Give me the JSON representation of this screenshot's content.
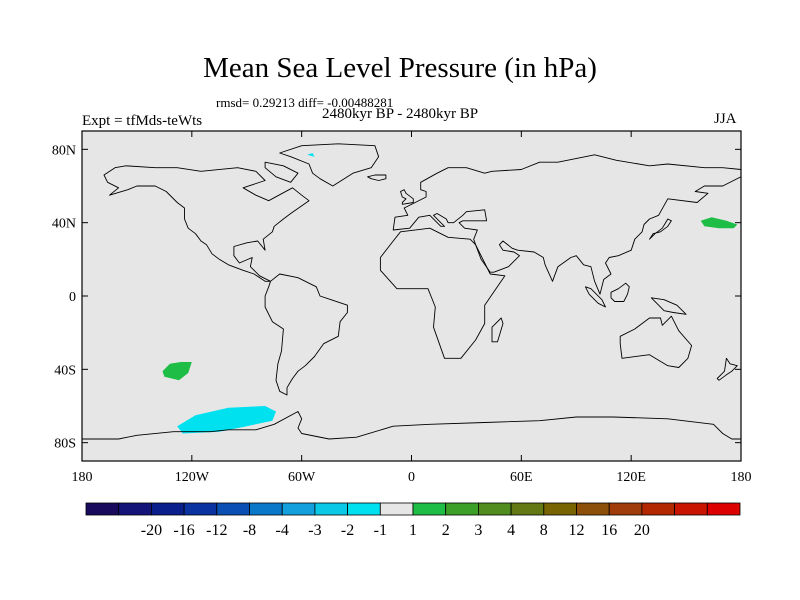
{
  "chart_data": {
    "type": "heatmap",
    "title": "Mean Sea Level Pressure (in hPa)",
    "stats_text": "rmsd= 0.29213  diff= -0.00488281",
    "period": "2480kyr BP - 2480kyr BP",
    "left_label": "Expt = tfMds-teWts",
    "right_label": "JJA",
    "x_ticks": [
      {
        "value": -180,
        "label": "180"
      },
      {
        "value": -120,
        "label": "120W"
      },
      {
        "value": -60,
        "label": "60W"
      },
      {
        "value": 0,
        "label": "0"
      },
      {
        "value": 60,
        "label": "60E"
      },
      {
        "value": 120,
        "label": "120E"
      },
      {
        "value": 180,
        "label": "180"
      }
    ],
    "y_ticks": [
      {
        "value": 80,
        "label": "80N"
      },
      {
        "value": 40,
        "label": "40N"
      },
      {
        "value": 0,
        "label": "0"
      },
      {
        "value": -40,
        "label": "40S"
      },
      {
        "value": -80,
        "label": "80S"
      }
    ],
    "xlim": [
      -180,
      180
    ],
    "ylim": [
      -90,
      90
    ],
    "background_color": "#e6e6e6",
    "colorbar": {
      "colors": [
        "#1a0a5e",
        "#141478",
        "#0a1e8c",
        "#0a32a0",
        "#0a50b4",
        "#0a78c8",
        "#14a0dc",
        "#0ac8e6",
        "#00e1f0",
        "#e6e6e6",
        "#1ebe46",
        "#3ca028",
        "#508c1e",
        "#647814",
        "#786400",
        "#8c500a",
        "#a03c0a",
        "#b42800",
        "#c81400",
        "#dc0000"
      ],
      "labels": [
        "-20",
        "-16",
        "-12",
        "-8",
        "-4",
        "-3",
        "-2",
        "-1",
        "1",
        "2",
        "3",
        "4",
        "8",
        "12",
        "16",
        "20"
      ]
    },
    "anomaly_regions": [
      {
        "name": "nw-pacific-positive",
        "color": "#1ebe46",
        "points": [
          [
            158,
            41
          ],
          [
            164,
            43
          ],
          [
            172,
            41
          ],
          [
            178,
            39
          ],
          [
            176,
            37
          ],
          [
            168,
            37
          ],
          [
            160,
            38
          ]
        ]
      },
      {
        "name": "south-pacific-positive",
        "color": "#1ebe46",
        "points": [
          [
            -136,
            -41
          ],
          [
            -132,
            -37
          ],
          [
            -126,
            -36
          ],
          [
            -120,
            -36
          ],
          [
            -122,
            -42
          ],
          [
            -127,
            -46
          ],
          [
            -135,
            -44
          ]
        ]
      },
      {
        "name": "amundsen-sea-negative",
        "color": "#00e1f0",
        "points": [
          [
            -128,
            -71
          ],
          [
            -118,
            -65
          ],
          [
            -100,
            -61
          ],
          [
            -80,
            -60
          ],
          [
            -74,
            -63
          ],
          [
            -76,
            -68
          ],
          [
            -90,
            -71
          ],
          [
            -105,
            -74
          ],
          [
            -125,
            -75
          ]
        ]
      },
      {
        "name": "greenland-negative",
        "color": "#00e1f0",
        "points": [
          [
            -57,
            77
          ],
          [
            -54,
            78
          ],
          [
            -53,
            76
          ]
        ]
      }
    ],
    "coastlines": {
      "north-america": [
        [
          -168,
          66
        ],
        [
          -162,
          70
        ],
        [
          -156,
          71
        ],
        [
          -140,
          70
        ],
        [
          -128,
          70
        ],
        [
          -115,
          68
        ],
        [
          -95,
          70
        ],
        [
          -85,
          68
        ],
        [
          -80,
          63
        ],
        [
          -92,
          59
        ],
        [
          -85,
          55
        ],
        [
          -78,
          52
        ],
        [
          -65,
          59
        ],
        [
          -60,
          55
        ],
        [
          -56,
          52
        ],
        [
          -66,
          45
        ],
        [
          -70,
          42
        ],
        [
          -75,
          38
        ],
        [
          -76,
          35
        ],
        [
          -81,
          31
        ],
        [
          -80,
          25
        ],
        [
          -84,
          30
        ],
        [
          -90,
          29
        ],
        [
          -97,
          27
        ],
        [
          -97,
          22
        ],
        [
          -94,
          18
        ],
        [
          -87,
          21
        ],
        [
          -88,
          16
        ],
        [
          -83,
          11
        ],
        [
          -77,
          8
        ],
        [
          -80,
          8
        ],
        [
          -86,
          12
        ],
        [
          -92,
          14
        ],
        [
          -100,
          17
        ],
        [
          -105,
          20
        ],
        [
          -109,
          23
        ],
        [
          -112,
          28
        ],
        [
          -115,
          30
        ],
        [
          -118,
          34
        ],
        [
          -122,
          37
        ],
        [
          -124,
          42
        ],
        [
          -124,
          48
        ],
        [
          -128,
          51
        ],
        [
          -134,
          57
        ],
        [
          -140,
          60
        ],
        [
          -150,
          60
        ],
        [
          -155,
          58
        ],
        [
          -165,
          55
        ],
        [
          -160,
          59
        ],
        [
          -166,
          62
        ]
      ],
      "greenland": [
        [
          -72,
          78
        ],
        [
          -60,
          82
        ],
        [
          -40,
          83
        ],
        [
          -20,
          82
        ],
        [
          -18,
          76
        ],
        [
          -22,
          70
        ],
        [
          -32,
          67
        ],
        [
          -43,
          60
        ],
        [
          -50,
          64
        ],
        [
          -54,
          67
        ],
        [
          -56,
          72
        ],
        [
          -66,
          76
        ]
      ],
      "south-america": [
        [
          -77,
          8
        ],
        [
          -72,
          12
        ],
        [
          -62,
          10
        ],
        [
          -52,
          5
        ],
        [
          -50,
          0
        ],
        [
          -44,
          -2
        ],
        [
          -35,
          -5
        ],
        [
          -35,
          -9
        ],
        [
          -39,
          -14
        ],
        [
          -40,
          -22
        ],
        [
          -48,
          -26
        ],
        [
          -53,
          -33
        ],
        [
          -58,
          -38
        ],
        [
          -62,
          -41
        ],
        [
          -65,
          -45
        ],
        [
          -68,
          -50
        ],
        [
          -68,
          -54
        ],
        [
          -72,
          -52
        ],
        [
          -74,
          -46
        ],
        [
          -73,
          -37
        ],
        [
          -71,
          -30
        ],
        [
          -70,
          -18
        ],
        [
          -76,
          -14
        ],
        [
          -80,
          -6
        ],
        [
          -80,
          0
        ],
        [
          -78,
          5
        ]
      ],
      "africa": [
        [
          -17,
          21
        ],
        [
          -10,
          30
        ],
        [
          -6,
          35
        ],
        [
          10,
          37
        ],
        [
          20,
          32
        ],
        [
          32,
          31
        ],
        [
          35,
          28
        ],
        [
          43,
          12
        ],
        [
          51,
          11
        ],
        [
          40,
          -5
        ],
        [
          40,
          -15
        ],
        [
          35,
          -24
        ],
        [
          27,
          -34
        ],
        [
          18,
          -34
        ],
        [
          12,
          -17
        ],
        [
          13,
          -6
        ],
        [
          9,
          4
        ],
        [
          -8,
          4
        ],
        [
          -17,
          14
        ]
      ],
      "eurasia": [
        [
          -10,
          36
        ],
        [
          -9,
          43
        ],
        [
          -2,
          44
        ],
        [
          -4,
          48
        ],
        [
          2,
          51
        ],
        [
          8,
          54
        ],
        [
          8,
          57
        ],
        [
          5,
          58
        ],
        [
          5,
          62
        ],
        [
          14,
          67
        ],
        [
          20,
          70
        ],
        [
          30,
          70
        ],
        [
          40,
          67
        ],
        [
          44,
          68
        ],
        [
          60,
          69
        ],
        [
          70,
          73
        ],
        [
          80,
          73
        ],
        [
          100,
          77
        ],
        [
          112,
          74
        ],
        [
          130,
          71
        ],
        [
          140,
          72
        ],
        [
          160,
          70
        ],
        [
          170,
          70
        ],
        [
          180,
          69
        ],
        [
          180,
          65
        ],
        [
          170,
          60
        ],
        [
          160,
          60
        ],
        [
          155,
          57
        ],
        [
          162,
          56
        ],
        [
          156,
          51
        ],
        [
          140,
          53
        ],
        [
          135,
          44
        ],
        [
          130,
          42
        ],
        [
          127,
          39
        ],
        [
          126,
          35
        ],
        [
          122,
          31
        ],
        [
          120,
          25
        ],
        [
          113,
          22
        ],
        [
          108,
          21
        ],
        [
          106,
          18
        ],
        [
          109,
          12
        ],
        [
          105,
          9
        ],
        [
          103,
          1
        ],
        [
          100,
          8
        ],
        [
          98,
          16
        ],
        [
          94,
          17
        ],
        [
          90,
          22
        ],
        [
          87,
          21
        ],
        [
          80,
          16
        ],
        [
          77,
          8
        ],
        [
          73,
          17
        ],
        [
          72,
          21
        ],
        [
          67,
          24
        ],
        [
          58,
          25
        ],
        [
          55,
          26
        ],
        [
          50,
          30
        ],
        [
          48,
          28
        ],
        [
          50,
          25
        ],
        [
          56,
          24
        ],
        [
          59,
          22
        ],
        [
          53,
          16
        ],
        [
          45,
          13
        ],
        [
          43,
          13
        ],
        [
          38,
          20
        ],
        [
          35,
          28
        ],
        [
          34,
          31
        ],
        [
          36,
          36
        ],
        [
          29,
          37
        ],
        [
          26,
          40
        ],
        [
          28,
          41
        ],
        [
          41,
          41
        ],
        [
          40,
          47
        ],
        [
          30,
          46
        ],
        [
          28,
          44
        ],
        [
          23,
          40
        ],
        [
          20,
          40
        ],
        [
          19,
          42
        ],
        [
          14,
          45
        ],
        [
          12,
          44
        ],
        [
          16,
          40
        ],
        [
          18,
          38
        ],
        [
          16,
          38
        ],
        [
          10,
          44
        ],
        [
          4,
          43
        ],
        [
          -1,
          37
        ]
      ],
      "antarctica": [
        [
          -180,
          -78
        ],
        [
          -160,
          -78
        ],
        [
          -150,
          -76
        ],
        [
          -130,
          -74
        ],
        [
          -110,
          -74
        ],
        [
          -100,
          -73
        ],
        [
          -85,
          -73
        ],
        [
          -75,
          -70
        ],
        [
          -62,
          -63
        ],
        [
          -60,
          -67
        ],
        [
          -62,
          -72
        ],
        [
          -60,
          -75
        ],
        [
          -45,
          -78
        ],
        [
          -30,
          -77
        ],
        [
          -10,
          -71
        ],
        [
          10,
          -70
        ],
        [
          40,
          -69
        ],
        [
          70,
          -68
        ],
        [
          90,
          -66
        ],
        [
          110,
          -66
        ],
        [
          140,
          -67
        ],
        [
          165,
          -70
        ],
        [
          170,
          -75
        ],
        [
          175,
          -78
        ],
        [
          180,
          -78
        ]
      ],
      "australia": [
        [
          114,
          -22
        ],
        [
          122,
          -18
        ],
        [
          130,
          -12
        ],
        [
          136,
          -12
        ],
        [
          137,
          -16
        ],
        [
          142,
          -11
        ],
        [
          146,
          -19
        ],
        [
          153,
          -27
        ],
        [
          151,
          -34
        ],
        [
          146,
          -39
        ],
        [
          140,
          -38
        ],
        [
          135,
          -35
        ],
        [
          130,
          -32
        ],
        [
          115,
          -34
        ],
        [
          114,
          -26
        ]
      ],
      "uk": [
        [
          -5,
          50
        ],
        [
          1,
          51
        ],
        [
          1,
          53
        ],
        [
          -3,
          56
        ],
        [
          -4,
          58
        ],
        [
          -6,
          57
        ],
        [
          -5,
          54
        ],
        [
          -3,
          53
        ],
        [
          -5,
          51
        ]
      ],
      "japan": [
        [
          130,
          31
        ],
        [
          132,
          34
        ],
        [
          136,
          35
        ],
        [
          140,
          38
        ],
        [
          142,
          41
        ],
        [
          140,
          42
        ],
        [
          137,
          37
        ],
        [
          133,
          34
        ]
      ],
      "madagascar": [
        [
          44,
          -25
        ],
        [
          47,
          -25
        ],
        [
          50,
          -15
        ],
        [
          49,
          -12
        ],
        [
          44,
          -17
        ]
      ],
      "new-zealand": [
        [
          172,
          -34
        ],
        [
          174,
          -37
        ],
        [
          178,
          -38
        ],
        [
          175,
          -41
        ],
        [
          172,
          -43
        ],
        [
          168,
          -46
        ],
        [
          167,
          -45
        ],
        [
          171,
          -41
        ]
      ],
      "iceland": [
        [
          -24,
          65
        ],
        [
          -20,
          66
        ],
        [
          -14,
          66
        ],
        [
          -14,
          64
        ],
        [
          -18,
          63
        ],
        [
          -22,
          64
        ]
      ],
      "borneo": [
        [
          109,
          2
        ],
        [
          113,
          4
        ],
        [
          117,
          7
        ],
        [
          119,
          5
        ],
        [
          118,
          1
        ],
        [
          116,
          -3
        ],
        [
          111,
          -3
        ],
        [
          109,
          -1
        ]
      ],
      "sumatra": [
        [
          95,
          5
        ],
        [
          98,
          4
        ],
        [
          104,
          -2
        ],
        [
          106,
          -6
        ],
        [
          102,
          -4
        ],
        [
          97,
          1
        ]
      ],
      "new-guinea": [
        [
          131,
          -1
        ],
        [
          138,
          -2
        ],
        [
          145,
          -5
        ],
        [
          150,
          -10
        ],
        [
          143,
          -9
        ],
        [
          138,
          -8
        ],
        [
          134,
          -4
        ]
      ],
      "baffin": [
        [
          -80,
          73
        ],
        [
          -70,
          71
        ],
        [
          -62,
          67
        ],
        [
          -66,
          62
        ],
        [
          -74,
          65
        ],
        [
          -80,
          70
        ]
      ]
    }
  }
}
